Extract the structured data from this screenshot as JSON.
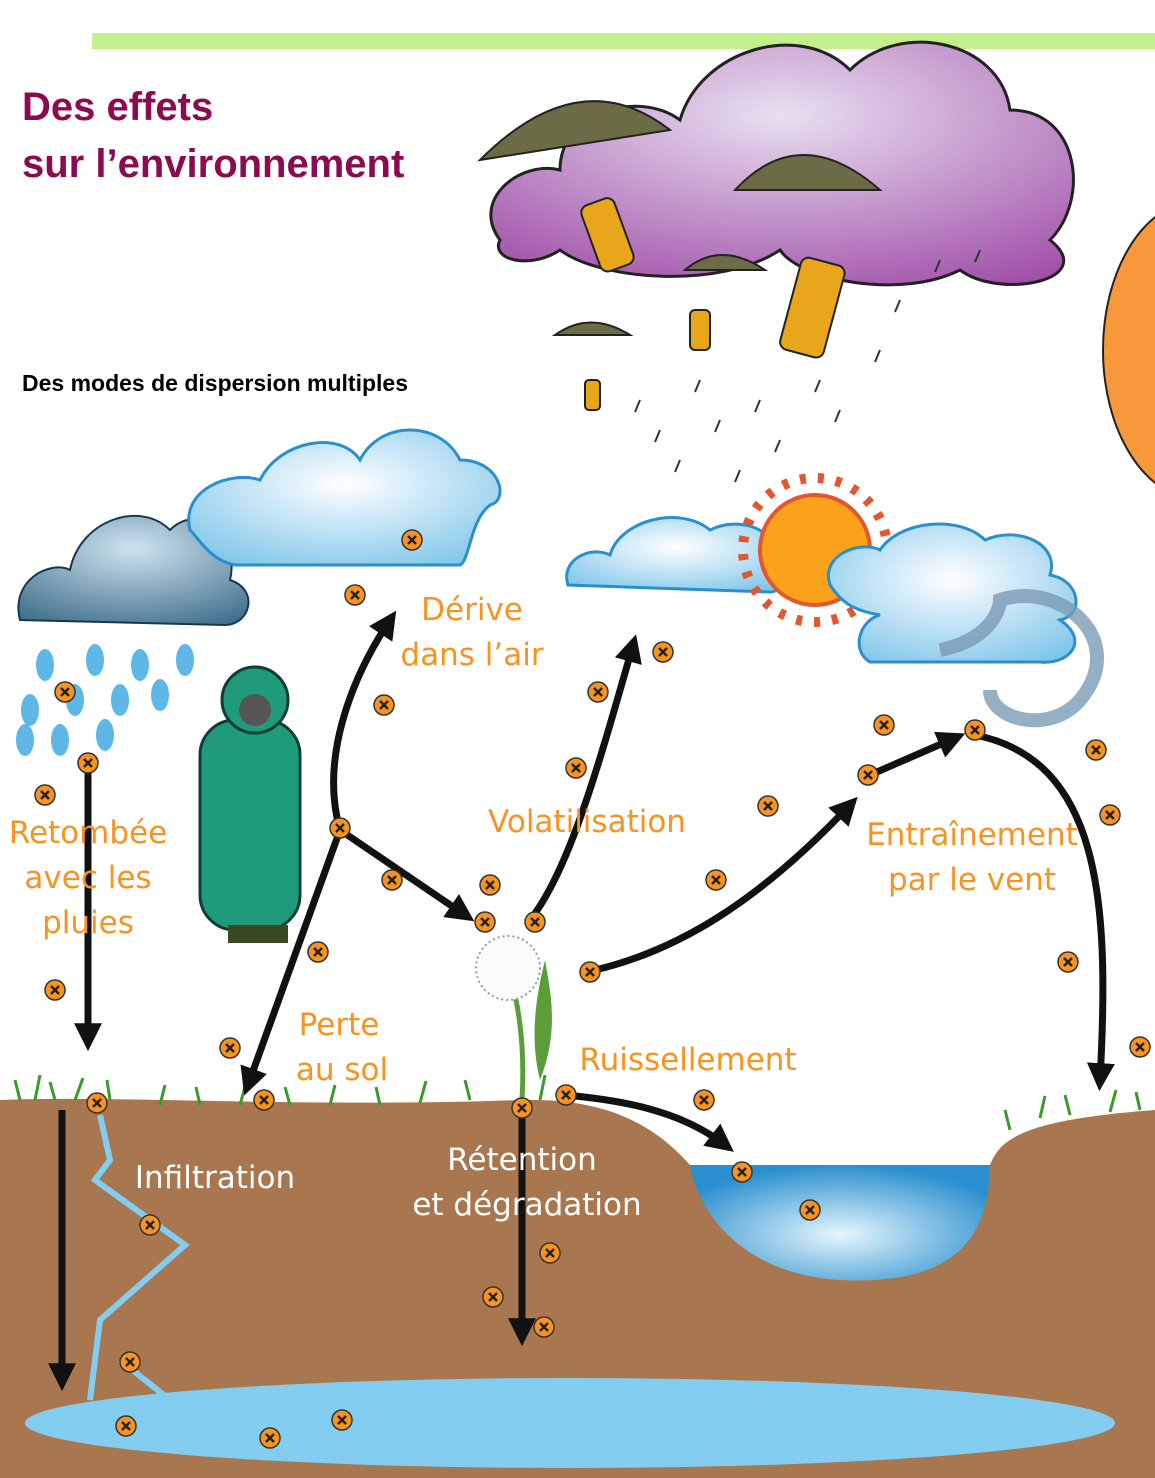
{
  "header": {
    "title": [
      "Des effets",
      "sur l’environnement"
    ],
    "subtitle": "Des modes de dispersion multiples"
  },
  "labels": [
    {
      "lines": [
        "Dérive",
        "dans l’air"
      ]
    },
    {
      "lines": [
        "Volatilisation"
      ]
    },
    {
      "lines": [
        "Retombée",
        "avec les",
        "pluies"
      ]
    },
    {
      "lines": [
        "Entraînement",
        "par le vent"
      ]
    },
    {
      "lines": [
        "Perte",
        "au sol"
      ]
    },
    {
      "lines": [
        "Ruissellement"
      ]
    },
    {
      "lines": [
        "Infiltration"
      ]
    },
    {
      "lines": [
        "Rétention",
        "et dégradation"
      ]
    }
  ]
}
